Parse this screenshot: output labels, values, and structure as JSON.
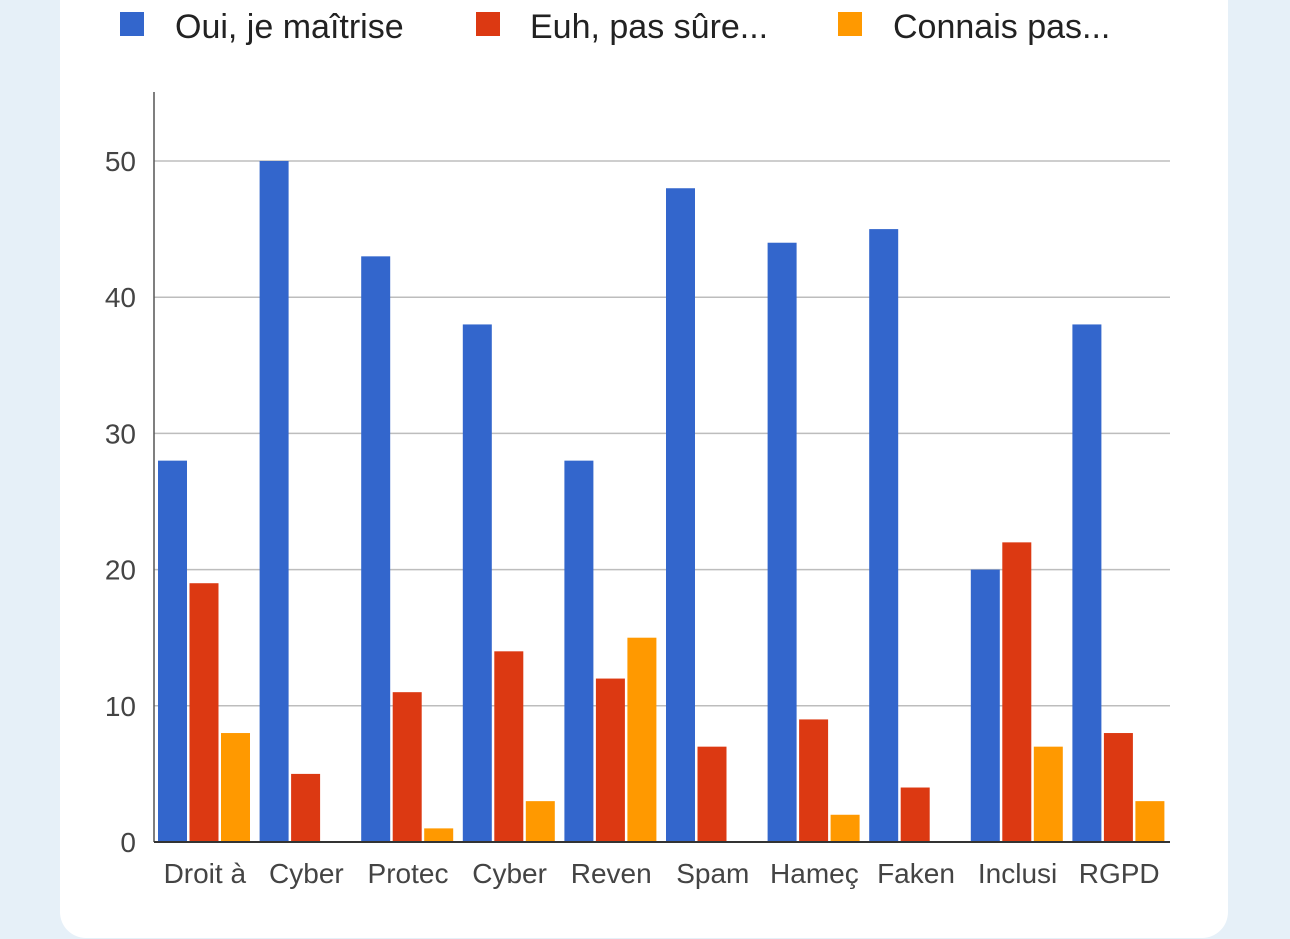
{
  "chart_data": {
    "type": "bar",
    "title": "",
    "xlabel": "",
    "ylabel": "",
    "ylim": [
      0,
      55
    ],
    "yticks": [
      0,
      10,
      20,
      30,
      40,
      50
    ],
    "grid": true,
    "legend_position": "top",
    "categories": [
      "Droit à",
      "Cyber",
      "Protec",
      "Cyber",
      "Reven",
      "Spam",
      "Hameç",
      "Faken",
      "Inclusi",
      "RGPD"
    ],
    "series": [
      {
        "name": "Oui, je maîtrise",
        "color": "#3366cc",
        "values": [
          28,
          50,
          43,
          38,
          28,
          48,
          44,
          45,
          20,
          38
        ]
      },
      {
        "name": "Euh, pas sûre...",
        "color": "#dc3912",
        "values": [
          19,
          5,
          11,
          14,
          12,
          7,
          9,
          4,
          22,
          8
        ]
      },
      {
        "name": "Connais pas...",
        "color": "#ff9900",
        "values": [
          8,
          0,
          1,
          3,
          15,
          0,
          2,
          0,
          7,
          3
        ]
      }
    ]
  }
}
